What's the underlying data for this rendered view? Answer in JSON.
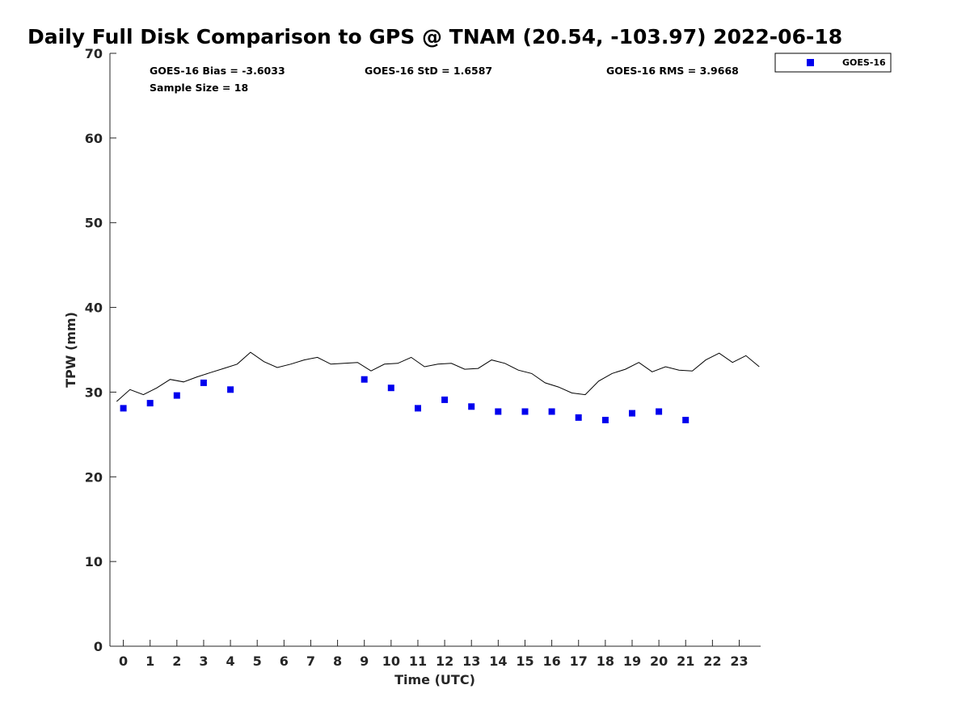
{
  "chart_data": {
    "type": "scatter",
    "title": "Daily Full Disk Comparison to GPS @ TNAM (20.54, -103.97) 2022-06-18",
    "xlabel": "Time (UTC)",
    "ylabel": "TPW (mm)",
    "xlim": [
      -0.5,
      23.8
    ],
    "ylim": [
      0,
      70
    ],
    "x_ticks": [
      0,
      1,
      2,
      3,
      4,
      5,
      6,
      7,
      8,
      9,
      10,
      11,
      12,
      13,
      14,
      15,
      16,
      17,
      18,
      19,
      20,
      21,
      22,
      23
    ],
    "y_ticks": [
      0,
      10,
      20,
      30,
      40,
      50,
      60,
      70
    ],
    "legend": {
      "position": "outside-top-right",
      "entries": [
        {
          "label": "GOES-16",
          "color": "#0000ee",
          "marker": "square"
        }
      ]
    },
    "stats": {
      "bias": "GOES-16 Bias = -3.6033",
      "std": "GOES-16 StD = 1.6587",
      "rms": "GOES-16 RMS = 3.9668",
      "sample_size": "Sample Size = 18"
    },
    "series": [
      {
        "name": "GOES-16",
        "kind": "scatter",
        "color": "#0000ee",
        "marker": "square",
        "x": [
          0,
          1,
          2,
          3,
          4,
          9,
          10,
          11,
          12,
          13,
          14,
          15,
          16,
          17,
          18,
          19,
          20,
          21
        ],
        "y": [
          28.1,
          28.7,
          29.6,
          31.1,
          30.3,
          31.5,
          30.5,
          28.1,
          29.1,
          28.3,
          27.7,
          27.7,
          27.7,
          27.0,
          26.7,
          27.5,
          27.7,
          26.7
        ]
      },
      {
        "kind": "line",
        "color": "#000000",
        "x": [
          -0.25,
          0.25,
          0.75,
          1.25,
          1.75,
          2.25,
          2.75,
          3.25,
          3.75,
          4.25,
          4.75,
          5.25,
          5.75,
          6.25,
          6.75,
          7.25,
          7.75,
          8.25,
          8.75,
          9.25,
          9.75,
          10.25,
          10.75,
          11.25,
          11.75,
          12.25,
          12.75,
          13.25,
          13.75,
          14.25,
          14.75,
          15.25,
          15.75,
          16.25,
          16.75,
          17.25,
          17.75,
          18.25,
          18.75,
          19.25,
          19.75,
          20.25,
          20.75,
          21.25,
          21.75,
          22.25,
          22.75,
          23.25,
          23.75
        ],
        "y": [
          28.9,
          30.3,
          29.7,
          30.5,
          31.5,
          31.2,
          31.8,
          32.3,
          32.8,
          33.3,
          34.7,
          33.6,
          32.9,
          33.3,
          33.8,
          34.1,
          33.3,
          33.4,
          33.5,
          32.5,
          33.3,
          33.4,
          34.1,
          33.0,
          33.3,
          33.4,
          32.7,
          32.8,
          33.8,
          33.4,
          32.6,
          32.2,
          31.1,
          30.6,
          29.9,
          29.7,
          31.3,
          32.2,
          32.7,
          33.5,
          32.4,
          33.0,
          32.6,
          32.5,
          33.8,
          34.6,
          33.5,
          34.3,
          33.0
        ]
      }
    ]
  }
}
